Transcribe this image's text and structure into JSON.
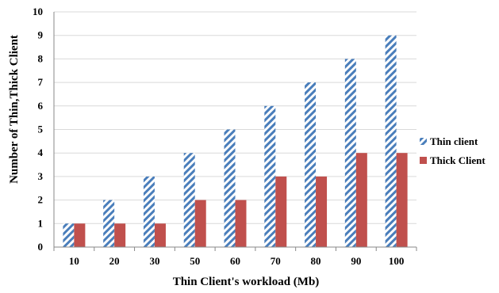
{
  "chart_data": {
    "type": "bar",
    "categories": [
      "10",
      "20",
      "30",
      "50",
      "60",
      "70",
      "80",
      "90",
      "100"
    ],
    "series": [
      {
        "name": "Thin client",
        "values": [
          1,
          2,
          3,
          4,
          5,
          6,
          7,
          8,
          9
        ],
        "color": "#4a7ebb",
        "pattern": "diagonal-hatch"
      },
      {
        "name": "Thick Client",
        "values": [
          1,
          1,
          1,
          2,
          2,
          3,
          3,
          4,
          4
        ],
        "color": "#c0504d",
        "pattern": "solid"
      }
    ],
    "title": "",
    "xlabel": "Thin Client's workload (Mb)",
    "ylabel": "Number of Thin,Thick Client",
    "ylim": [
      0,
      10
    ],
    "yticks": [
      0,
      1,
      2,
      3,
      4,
      5,
      6,
      7,
      8,
      9,
      10
    ],
    "grid": true,
    "legend_position": "right"
  }
}
